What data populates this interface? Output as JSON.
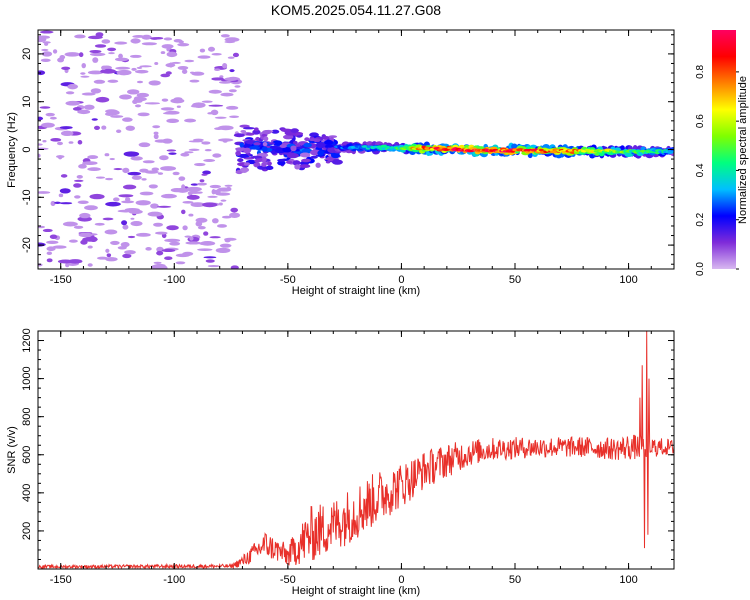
{
  "title": "KOM5.2025.054.11.27.G08",
  "chart_data": [
    {
      "type": "heatmap",
      "xlabel": "Height of straight line (km)",
      "ylabel": "Frequency (Hz)",
      "xlim": [
        -160,
        120
      ],
      "ylim": [
        -25,
        25
      ],
      "xticks": [
        -150,
        -100,
        -50,
        0,
        50,
        100
      ],
      "yticks": [
        -20,
        -10,
        0,
        10,
        20
      ],
      "colorbar": {
        "label": "Normalized spectral amplitude",
        "range": [
          0,
          0.97
        ],
        "ticks": [
          0.0,
          0.2,
          0.4,
          0.6,
          0.8
        ],
        "colors": [
          "#d8b8f0",
          "#7f2bd9",
          "#0000ff",
          "#00bfff",
          "#00ff7f",
          "#7fff00",
          "#ffff00",
          "#ff8000",
          "#ff0000",
          "#ff0060"
        ]
      },
      "features": [
        {
          "segment": "noise",
          "x_range": [
            -160,
            -72
          ],
          "freq_range": [
            -25,
            25
          ],
          "amplitude": 0.05
        },
        {
          "segment": "onset",
          "x_range": [
            -72,
            -28
          ],
          "freq_range": [
            -7,
            7
          ],
          "amplitude": 0.25
        },
        {
          "segment": "carrier",
          "x_range": [
            -28,
            120
          ],
          "center_freq_hz": [
            [
              -28,
              0.5
            ],
            [
              0,
              0.3
            ],
            [
              50,
              -0.2
            ],
            [
              100,
              -0.5
            ],
            [
              120,
              -0.3
            ]
          ],
          "amplitude_profile": [
            [
              -28,
              0.25
            ],
            [
              0,
              0.45
            ],
            [
              10,
              0.85
            ],
            [
              30,
              0.95
            ],
            [
              60,
              0.85
            ],
            [
              100,
              0.5
            ],
            [
              120,
              0.35
            ]
          ]
        }
      ]
    },
    {
      "type": "line",
      "xlabel": "Height of straight line (km)",
      "ylabel": "SNR (v/v)",
      "xlim": [
        -160,
        120
      ],
      "ylim": [
        0,
        1250
      ],
      "xticks": [
        -150,
        -100,
        -50,
        0,
        50,
        100
      ],
      "yticks": [
        200,
        400,
        600,
        800,
        1000,
        1200
      ],
      "series_color": "#e8302a",
      "trend": [
        {
          "x": -160,
          "mean": 12,
          "noise": 8
        },
        {
          "x": -75,
          "mean": 15,
          "noise": 10
        },
        {
          "x": -70,
          "mean": 40,
          "noise": 30
        },
        {
          "x": -60,
          "mean": 130,
          "noise": 70
        },
        {
          "x": -50,
          "mean": 70,
          "noise": 60
        },
        {
          "x": -40,
          "mean": 180,
          "noise": 150
        },
        {
          "x": -30,
          "mean": 230,
          "noise": 140
        },
        {
          "x": -20,
          "mean": 300,
          "noise": 150
        },
        {
          "x": -10,
          "mean": 380,
          "noise": 140
        },
        {
          "x": 0,
          "mean": 440,
          "noise": 120
        },
        {
          "x": 10,
          "mean": 520,
          "noise": 100
        },
        {
          "x": 20,
          "mean": 570,
          "noise": 90
        },
        {
          "x": 30,
          "mean": 610,
          "noise": 70
        },
        {
          "x": 40,
          "mean": 630,
          "noise": 60
        },
        {
          "x": 60,
          "mean": 640,
          "noise": 55
        },
        {
          "x": 80,
          "mean": 640,
          "noise": 55
        },
        {
          "x": 95,
          "mean": 630,
          "noise": 60
        },
        {
          "x": 100,
          "mean": 640,
          "noise": 70
        },
        {
          "x": 120,
          "mean": 640,
          "noise": 40
        }
      ],
      "spikes": [
        {
          "x": 103,
          "y": 700
        },
        {
          "x": 105,
          "y": 900
        },
        {
          "x": 106,
          "y": 1070
        },
        {
          "x": 107,
          "y": 110
        },
        {
          "x": 108,
          "y": 1250
        },
        {
          "x": 108.5,
          "y": 180
        },
        {
          "x": 109,
          "y": 1000
        },
        {
          "x": 110,
          "y": 620
        }
      ]
    }
  ]
}
